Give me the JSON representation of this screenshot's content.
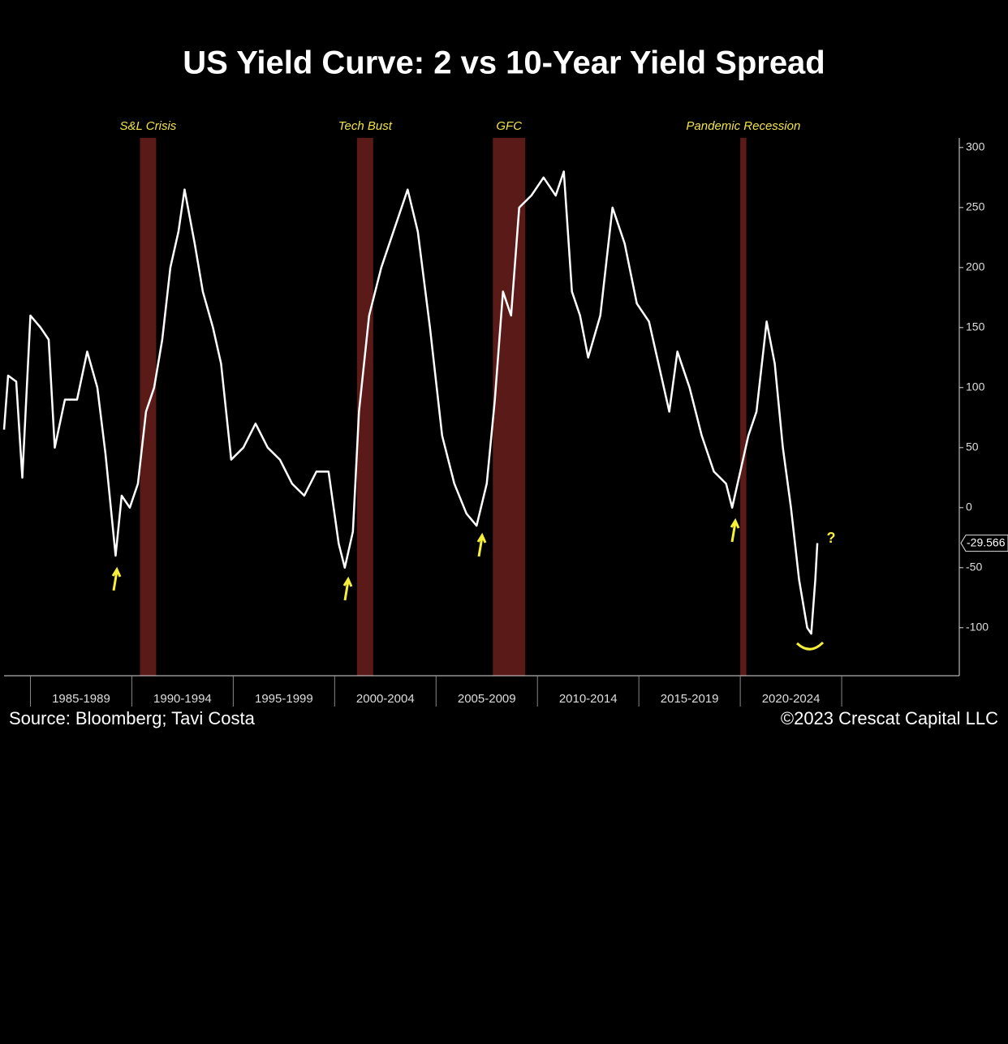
{
  "chart_data": {
    "type": "line",
    "title": "US Yield Curve: 2 vs 10-Year Yield Spread",
    "source": "Source: Bloomberg; Tavi Costa",
    "copyright": "©2023 Crescat Capital LLC",
    "color": "#ffffff",
    "x": [
      1983.7,
      1983.9,
      1984.3,
      1984.6,
      1985.0,
      1985.5,
      1985.9,
      1986.2,
      1986.7,
      1987.3,
      1987.8,
      1988.3,
      1988.7,
      1989.2,
      1989.5,
      1989.9,
      1990.3,
      1990.7,
      1991.1,
      1991.5,
      1991.9,
      1992.3,
      1992.6,
      1993.1,
      1993.5,
      1994.0,
      1994.4,
      1994.9,
      1995.5,
      1996.1,
      1996.7,
      1997.3,
      1997.9,
      1998.5,
      1999.1,
      1999.7,
      2000.2,
      2000.5,
      2000.9,
      2001.2,
      2001.7,
      2002.3,
      2002.9,
      2003.6,
      2004.1,
      2004.7,
      2005.3,
      2005.9,
      2006.5,
      2007.0,
      2007.5,
      2007.9,
      2008.3,
      2008.7,
      2009.1,
      2009.7,
      2010.3,
      2010.9,
      2011.3,
      2011.7,
      2012.1,
      2012.5,
      2013.1,
      2013.7,
      2014.3,
      2014.9,
      2015.5,
      2016.1,
      2016.5,
      2016.9,
      2017.5,
      2018.1,
      2018.7,
      2019.3,
      2019.6,
      2020.0,
      2020.4,
      2020.8,
      2021.3,
      2021.7,
      2022.1,
      2022.5,
      2022.9,
      2023.3,
      2023.5,
      2023.7,
      2023.8
    ],
    "values": [
      65,
      110,
      105,
      25,
      160,
      150,
      140,
      50,
      90,
      90,
      130,
      100,
      45,
      -40,
      10,
      0,
      20,
      80,
      100,
      140,
      200,
      230,
      265,
      220,
      180,
      150,
      120,
      40,
      50,
      70,
      50,
      40,
      20,
      10,
      30,
      30,
      -30,
      -50,
      -20,
      80,
      160,
      200,
      230,
      265,
      230,
      150,
      60,
      20,
      -5,
      -15,
      20,
      90,
      180,
      160,
      250,
      260,
      275,
      260,
      280,
      180,
      160,
      125,
      160,
      250,
      220,
      170,
      155,
      110,
      80,
      130,
      100,
      60,
      30,
      20,
      0,
      30,
      60,
      80,
      155,
      120,
      50,
      0,
      -60,
      -100,
      -105,
      -60,
      -29.566
    ],
    "xlim": [
      1983.7,
      2030.8
    ],
    "xticks": [
      1985,
      1990,
      1995,
      2000,
      2005,
      2010,
      2015,
      2020,
      2025
    ],
    "periods": [
      {
        "label": "1985-1989",
        "start": 1985,
        "end": 1990
      },
      {
        "label": "1990-1994",
        "start": 1990,
        "end": 1995
      },
      {
        "label": "1995-1999",
        "start": 1995,
        "end": 2000
      },
      {
        "label": "2000-2004",
        "start": 2000,
        "end": 2005
      },
      {
        "label": "2005-2009",
        "start": 2005,
        "end": 2010
      },
      {
        "label": "2010-2014",
        "start": 2010,
        "end": 2015
      },
      {
        "label": "2015-2019",
        "start": 2015,
        "end": 2020
      },
      {
        "label": "2020-2024",
        "start": 2020,
        "end": 2025
      }
    ],
    "ylim": [
      -140,
      308
    ],
    "yticks": [
      300,
      250,
      200,
      150,
      100,
      50,
      0,
      -50,
      -100
    ],
    "recessions": [
      {
        "label": "S&L Crisis",
        "start": 1990.4,
        "end": 1991.2
      },
      {
        "label": "Tech Bust",
        "start": 2001.1,
        "end": 2001.9
      },
      {
        "label": "GFC",
        "start": 2007.8,
        "end": 2009.4
      },
      {
        "label": "Pandemic Recession",
        "start": 2020.0,
        "end": 2020.3
      }
    ],
    "annotation": "?"
  }
}
